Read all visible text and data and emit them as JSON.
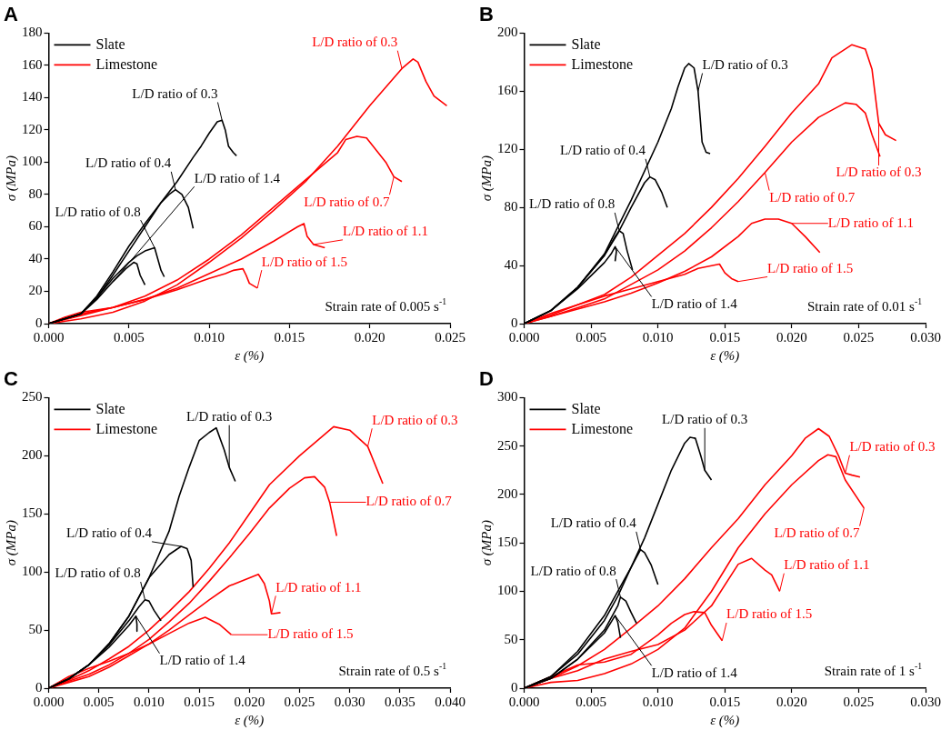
{
  "chart_data": [
    {
      "type": "line",
      "title": "A",
      "xlabel": "ε (%)",
      "ylabel": "σ (MPa)",
      "legend": "top left",
      "xlim": [
        0,
        0.025
      ],
      "xticks": [
        {
          "value": 0,
          "label": "0.000"
        },
        {
          "value": 0.005,
          "label": "0.005"
        },
        {
          "value": 0.01,
          "label": "0.010"
        },
        {
          "value": 0.015,
          "label": "0.015"
        },
        {
          "value": 0.02,
          "label": "0.020"
        },
        {
          "value": 0.025,
          "label": "0.025"
        }
      ],
      "ylim": [
        0,
        180
      ],
      "yticks": [
        0,
        20,
        40,
        60,
        80,
        100,
        120,
        140,
        160,
        180
      ],
      "series": [
        {
          "name": "Slate",
          "color": "#000000",
          "x": [
            0,
            0.001,
            0.002,
            0.003,
            0.004,
            0.005,
            0.006,
            0.007,
            0.008,
            0.009,
            0.0095,
            0.01,
            0.0105,
            0.0108,
            0.011,
            0.0112,
            0.0115,
            0.0117
          ],
          "values": [
            0,
            3,
            6,
            16,
            30,
            45,
            60,
            75,
            88,
            103,
            110,
            118,
            125,
            126,
            120,
            110,
            106,
            104
          ]
        },
        {
          "color": "#000000",
          "x": [
            0,
            0.002,
            0.003,
            0.004,
            0.005,
            0.006,
            0.007,
            0.0075,
            0.0079,
            0.0083,
            0.0087,
            0.009
          ],
          "values": [
            0,
            6,
            17,
            32,
            48,
            62,
            75,
            80,
            83,
            80,
            72,
            59
          ]
        },
        {
          "color": "#000000",
          "x": [
            0,
            0.002,
            0.003,
            0.004,
            0.005,
            0.0055,
            0.006,
            0.0066,
            0.0068,
            0.007,
            0.0072
          ],
          "values": [
            0,
            6,
            16,
            28,
            38,
            42,
            45,
            47,
            40,
            33,
            29
          ]
        },
        {
          "color": "#000000",
          "x": [
            0,
            0.002,
            0.003,
            0.004,
            0.0048,
            0.0053,
            0.0055,
            0.0057,
            0.006
          ],
          "values": [
            0,
            6,
            15,
            26,
            34,
            38,
            37,
            30,
            24
          ]
        },
        {
          "name": "Limestone",
          "color": "#ff0000",
          "x": [
            0,
            0.002,
            0.004,
            0.006,
            0.008,
            0.01,
            0.012,
            0.014,
            0.016,
            0.018,
            0.02,
            0.022,
            0.0227,
            0.023,
            0.0235,
            0.024,
            0.0248
          ],
          "values": [
            0,
            3,
            7,
            14,
            24,
            38,
            53,
            70,
            88,
            110,
            135,
            158,
            164,
            162,
            150,
            141,
            135
          ]
        },
        {
          "color": "#ff0000",
          "x": [
            0,
            0.002,
            0.004,
            0.006,
            0.008,
            0.01,
            0.012,
            0.014,
            0.016,
            0.018,
            0.0185,
            0.0192,
            0.0198,
            0.021,
            0.0215,
            0.022
          ],
          "values": [
            0,
            5,
            10,
            17,
            27,
            40,
            55,
            72,
            89,
            106,
            114,
            116,
            115,
            100,
            91,
            88
          ]
        },
        {
          "color": "#ff0000",
          "x": [
            0,
            0.002,
            0.004,
            0.006,
            0.008,
            0.01,
            0.012,
            0.014,
            0.0155,
            0.0159,
            0.0161,
            0.0165,
            0.0172
          ],
          "values": [
            0,
            6,
            10,
            15,
            22,
            31,
            40,
            51,
            60,
            62,
            54,
            49,
            47
          ]
        },
        {
          "color": "#ff0000",
          "x": [
            0,
            0.001,
            0.002,
            0.004,
            0.006,
            0.008,
            0.01,
            0.011,
            0.0115,
            0.0121,
            0.0123,
            0.0125,
            0.013
          ],
          "values": [
            0,
            4,
            7,
            10,
            15,
            21,
            28,
            31,
            33,
            34,
            30,
            25,
            22
          ]
        }
      ],
      "annotations": [
        {
          "text": "L/D ratio of 0.3",
          "x": 0.0108,
          "y": 126
        },
        {
          "text": "L/D ratio of 0.4",
          "x": 0.0079,
          "y": 83
        },
        {
          "text": "L/D ratio of 0.8",
          "x": 0.0066,
          "y": 47
        },
        {
          "text": "L/D ratio of 1.4",
          "x": 0.004,
          "y": 26
        },
        {
          "text": "L/D ratio of 0.3",
          "x": 0.022,
          "y": 158
        },
        {
          "text": "L/D ratio of 0.7",
          "x": 0.0215,
          "y": 91
        },
        {
          "text": "L/D ratio of 1.1",
          "x": 0.0165,
          "y": 49
        },
        {
          "text": "L/D ratio of 1.5",
          "x": 0.013,
          "y": 22
        },
        "Strain rate of 0.005 s$^{-1}$"
      ]
    },
    {
      "type": "line",
      "title": "B",
      "xlabel": "ε (%)",
      "ylabel": "σ (MPa)",
      "legend": "top left",
      "xlim": [
        0,
        0.03
      ],
      "xticks": [
        {
          "value": 0,
          "label": "0.000"
        },
        {
          "value": 0.005,
          "label": "0.005"
        },
        {
          "value": 0.01,
          "label": "0.010"
        },
        {
          "value": 0.015,
          "label": "0.015"
        },
        {
          "value": 0.02,
          "label": "0.020"
        },
        {
          "value": 0.025,
          "label": "0.025"
        },
        {
          "value": 0.03,
          "label": "0.030"
        }
      ],
      "ylim": [
        0,
        200
      ],
      "yticks": [
        0,
        40,
        80,
        120,
        160,
        200
      ],
      "series": [
        {
          "name": "Slate",
          "color": "#000000",
          "x": [
            0,
            0.002,
            0.004,
            0.006,
            0.008,
            0.01,
            0.011,
            0.0115,
            0.012,
            0.0123,
            0.0127,
            0.013,
            0.0133,
            0.0136,
            0.0139
          ],
          "values": [
            0,
            9,
            25,
            48,
            85,
            125,
            148,
            163,
            176,
            179,
            176,
            160,
            125,
            118,
            117
          ]
        },
        {
          "color": "#000000",
          "x": [
            0,
            0.002,
            0.004,
            0.006,
            0.007,
            0.008,
            0.009,
            0.0094,
            0.0098,
            0.0103,
            0.0107
          ],
          "values": [
            0,
            9,
            25,
            47,
            62,
            80,
            97,
            101,
            99,
            90,
            80
          ]
        },
        {
          "color": "#000000",
          "x": [
            0,
            0.002,
            0.004,
            0.006,
            0.0068,
            0.0071,
            0.0074,
            0.0077,
            0.0081
          ],
          "values": [
            0,
            9,
            25,
            47,
            60,
            64,
            62,
            50,
            37
          ]
        },
        {
          "color": "#000000",
          "x": [
            0,
            0.002,
            0.004,
            0.006,
            0.0065,
            0.0068,
            0.0069,
            0.0068
          ],
          "values": [
            0,
            9,
            24,
            42,
            48,
            53,
            50,
            43
          ]
        },
        {
          "name": "Limestone",
          "color": "#ff0000",
          "x": [
            0,
            0.002,
            0.004,
            0.006,
            0.008,
            0.01,
            0.012,
            0.014,
            0.016,
            0.018,
            0.02,
            0.022,
            0.023,
            0.0245,
            0.0255,
            0.026,
            0.0265,
            0.027,
            0.0278
          ],
          "values": [
            0,
            6,
            13,
            20,
            32,
            47,
            62,
            80,
            100,
            122,
            145,
            165,
            183,
            192,
            189,
            175,
            138,
            130,
            126
          ]
        },
        {
          "color": "#ff0000",
          "x": [
            0,
            0.002,
            0.004,
            0.006,
            0.008,
            0.01,
            0.012,
            0.014,
            0.016,
            0.018,
            0.02,
            0.022,
            0.024,
            0.0248,
            0.0255,
            0.026,
            0.0266
          ],
          "values": [
            0,
            5,
            11,
            17,
            27,
            37,
            50,
            66,
            84,
            104,
            125,
            142,
            152,
            151,
            145,
            130,
            115
          ]
        },
        {
          "color": "#ff0000",
          "x": [
            0,
            0.002,
            0.004,
            0.006,
            0.008,
            0.01,
            0.012,
            0.014,
            0.016,
            0.017,
            0.018,
            0.019,
            0.02,
            0.021,
            0.0221
          ],
          "values": [
            0,
            5,
            10,
            15,
            21,
            28,
            36,
            46,
            60,
            69,
            72,
            72,
            69,
            60,
            49
          ]
        },
        {
          "color": "#ff0000",
          "x": [
            0,
            0.002,
            0.004,
            0.006,
            0.008,
            0.01,
            0.012,
            0.013,
            0.0146,
            0.015,
            0.0155,
            0.016
          ],
          "values": [
            0,
            7,
            13,
            19,
            24,
            29,
            34,
            38,
            41,
            35,
            31,
            29
          ]
        }
      ],
      "annotations": [
        {
          "text": "L/D ratio of 0.3",
          "x": 0.013,
          "y": 160
        },
        {
          "text": "L/D ratio of 0.4",
          "x": 0.0094,
          "y": 101
        },
        {
          "text": "L/D ratio of 0.8",
          "x": 0.0071,
          "y": 64
        },
        {
          "text": "L/D ratio of 1.4",
          "x": 0.0068,
          "y": 53
        },
        {
          "text": "L/D ratio of 0.3",
          "x": 0.0265,
          "y": 138
        },
        {
          "text": "L/D ratio of 0.7",
          "x": 0.018,
          "y": 104
        },
        {
          "text": "L/D ratio of 1.1",
          "x": 0.02,
          "y": 69
        },
        {
          "text": "L/D ratio of 1.5",
          "x": 0.016,
          "y": 29
        },
        "Strain rate of 0.01 s$^{-1}$"
      ]
    },
    {
      "type": "line",
      "title": "C",
      "xlabel": "ε (%)",
      "ylabel": "σ (MPa)",
      "legend": "top left",
      "xlim": [
        0,
        0.04
      ],
      "xticks": [
        {
          "value": 0,
          "label": "0.000"
        },
        {
          "value": 0.005,
          "label": "0.005"
        },
        {
          "value": 0.01,
          "label": "0.010"
        },
        {
          "value": 0.015,
          "label": "0.015"
        },
        {
          "value": 0.02,
          "label": "0.020"
        },
        {
          "value": 0.025,
          "label": "0.025"
        },
        {
          "value": 0.03,
          "label": "0.030"
        },
        {
          "value": 0.035,
          "label": "0.035"
        },
        {
          "value": 0.04,
          "label": "0.040"
        }
      ],
      "ylim": [
        0,
        250
      ],
      "yticks": [
        0,
        50,
        100,
        150,
        200,
        250
      ],
      "series": [
        {
          "name": "Slate",
          "color": "#000000",
          "x": [
            0,
            0.002,
            0.004,
            0.006,
            0.008,
            0.01,
            0.012,
            0.013,
            0.014,
            0.015,
            0.016,
            0.0167,
            0.0175,
            0.018,
            0.0186
          ],
          "values": [
            0,
            8,
            20,
            38,
            62,
            95,
            135,
            165,
            190,
            213,
            220,
            224,
            205,
            190,
            178
          ]
        },
        {
          "color": "#000000",
          "x": [
            0,
            0.002,
            0.004,
            0.006,
            0.008,
            0.01,
            0.011,
            0.012,
            0.0132,
            0.0138,
            0.0142,
            0.0144
          ],
          "values": [
            0,
            8,
            20,
            38,
            62,
            95,
            105,
            115,
            122,
            120,
            110,
            87
          ]
        },
        {
          "color": "#000000",
          "x": [
            0,
            0.002,
            0.004,
            0.006,
            0.008,
            0.009,
            0.0096,
            0.01,
            0.0105,
            0.0112
          ],
          "values": [
            0,
            8,
            20,
            37,
            58,
            70,
            76,
            75,
            67,
            58
          ]
        },
        {
          "color": "#000000",
          "x": [
            0,
            0.002,
            0.004,
            0.006,
            0.008,
            0.0087,
            0.0088,
            0.0088
          ],
          "values": [
            0,
            8,
            20,
            35,
            54,
            62,
            55,
            49
          ]
        },
        {
          "name": "Limestone",
          "color": "#ff0000",
          "x": [
            0,
            0.002,
            0.004,
            0.006,
            0.008,
            0.01,
            0.012,
            0.014,
            0.016,
            0.018,
            0.02,
            0.022,
            0.025,
            0.0284,
            0.03,
            0.0318,
            0.0333
          ],
          "values": [
            0,
            7,
            15,
            25,
            36,
            50,
            66,
            83,
            103,
            125,
            150,
            175,
            200,
            225,
            222,
            208,
            176
          ]
        },
        {
          "color": "#ff0000",
          "x": [
            0,
            0.002,
            0.004,
            0.006,
            0.008,
            0.01,
            0.012,
            0.014,
            0.016,
            0.018,
            0.02,
            0.022,
            0.024,
            0.0255,
            0.0265,
            0.0275,
            0.028,
            0.0287
          ],
          "values": [
            0,
            6,
            12,
            20,
            30,
            42,
            57,
            73,
            92,
            112,
            133,
            155,
            172,
            181,
            182,
            173,
            160,
            131
          ]
        },
        {
          "color": "#ff0000",
          "x": [
            0,
            0.002,
            0.004,
            0.006,
            0.008,
            0.01,
            0.012,
            0.014,
            0.016,
            0.018,
            0.0209,
            0.0215,
            0.022,
            0.0222,
            0.0231
          ],
          "values": [
            0,
            5,
            10,
            18,
            28,
            38,
            50,
            63,
            76,
            88,
            98,
            90,
            75,
            64,
            65
          ]
        },
        {
          "color": "#ff0000",
          "x": [
            0,
            0.002,
            0.004,
            0.006,
            0.008,
            0.01,
            0.012,
            0.014,
            0.0156,
            0.017,
            0.0182
          ],
          "values": [
            0,
            10,
            17,
            23,
            30,
            38,
            47,
            56,
            61,
            55,
            46
          ]
        }
      ],
      "annotations": [
        {
          "text": "L/D ratio of 0.3",
          "x": 0.018,
          "y": 190
        },
        {
          "text": "L/D ratio of 0.4",
          "x": 0.0132,
          "y": 122
        },
        {
          "text": "L/D ratio of 0.8",
          "x": 0.0096,
          "y": 76
        },
        {
          "text": "L/D ratio of 1.4",
          "x": 0.0087,
          "y": 62
        },
        {
          "text": "L/D ratio of 0.3",
          "x": 0.0318,
          "y": 208
        },
        {
          "text": "L/D ratio of 0.7",
          "x": 0.028,
          "y": 160
        },
        {
          "text": "L/D ratio of 1.1",
          "x": 0.0222,
          "y": 64
        },
        {
          "text": "L/D ratio of 1.5",
          "x": 0.0182,
          "y": 46
        },
        "Strain rate of 0.5 s$^{-1}$"
      ]
    },
    {
      "type": "line",
      "title": "D",
      "xlabel": "ε (%)",
      "ylabel": "σ (MPa)",
      "legend": "top left",
      "xlim": [
        0,
        0.03
      ],
      "xticks": [
        {
          "value": 0,
          "label": "0.000"
        },
        {
          "value": 0.005,
          "label": "0.005"
        },
        {
          "value": 0.01,
          "label": "0.010"
        },
        {
          "value": 0.015,
          "label": "0.015"
        },
        {
          "value": 0.02,
          "label": "0.020"
        },
        {
          "value": 0.025,
          "label": "0.025"
        },
        {
          "value": 0.03,
          "label": "0.030"
        }
      ],
      "ylim": [
        0,
        300
      ],
      "yticks": [
        0,
        50,
        100,
        150,
        200,
        250,
        300
      ],
      "series": [
        {
          "name": "Slate",
          "color": "#000000",
          "x": [
            0,
            0.002,
            0.004,
            0.006,
            0.008,
            0.009,
            0.01,
            0.011,
            0.012,
            0.0124,
            0.0128,
            0.0132,
            0.0135,
            0.014
          ],
          "values": [
            0,
            12,
            38,
            75,
            125,
            155,
            190,
            225,
            253,
            259,
            258,
            240,
            225,
            215
          ]
        },
        {
          "color": "#000000",
          "x": [
            0,
            0.002,
            0.004,
            0.006,
            0.007,
            0.008,
            0.0087,
            0.009,
            0.0095,
            0.01
          ],
          "values": [
            0,
            12,
            35,
            70,
            95,
            125,
            143,
            140,
            127,
            107
          ]
        },
        {
          "color": "#000000",
          "x": [
            0,
            0.002,
            0.004,
            0.006,
            0.007,
            0.0072,
            0.0076,
            0.008,
            0.0084
          ],
          "values": [
            0,
            10,
            30,
            60,
            85,
            94,
            90,
            78,
            67
          ]
        },
        {
          "color": "#000000",
          "x": [
            0,
            0.002,
            0.004,
            0.006,
            0.0068,
            0.007,
            0.0072
          ],
          "values": [
            0,
            10,
            30,
            57,
            75,
            68,
            52
          ]
        },
        {
          "name": "Limestone",
          "color": "#ff0000",
          "x": [
            0,
            0.002,
            0.004,
            0.006,
            0.008,
            0.01,
            0.012,
            0.014,
            0.016,
            0.018,
            0.02,
            0.021,
            0.022,
            0.0228,
            0.0235,
            0.024,
            0.0245,
            0.0251
          ],
          "values": [
            0,
            10,
            23,
            40,
            62,
            85,
            113,
            145,
            175,
            210,
            240,
            258,
            268,
            260,
            240,
            222,
            220,
            218
          ]
        },
        {
          "color": "#ff0000",
          "x": [
            0,
            0.002,
            0.004,
            0.006,
            0.008,
            0.01,
            0.012,
            0.014,
            0.016,
            0.018,
            0.02,
            0.022,
            0.0227,
            0.0233,
            0.024,
            0.0254
          ],
          "values": [
            0,
            6,
            8,
            15,
            25,
            40,
            62,
            100,
            145,
            180,
            210,
            235,
            241,
            239,
            215,
            186
          ]
        },
        {
          "color": "#ff0000",
          "x": [
            0,
            0.002,
            0.004,
            0.006,
            0.008,
            0.01,
            0.012,
            0.014,
            0.016,
            0.017,
            0.018,
            0.0185,
            0.0191
          ],
          "values": [
            0,
            10,
            18,
            30,
            38,
            45,
            60,
            85,
            128,
            134,
            122,
            117,
            100
          ]
        },
        {
          "color": "#ff0000",
          "x": [
            0,
            0.002,
            0.004,
            0.006,
            0.008,
            0.01,
            0.011,
            0.012,
            0.0127,
            0.0135,
            0.014,
            0.0148
          ],
          "values": [
            0,
            12,
            24,
            27,
            35,
            55,
            67,
            76,
            79,
            78,
            65,
            49
          ]
        }
      ],
      "annotations": [
        {
          "text": "L/D ratio of 0.3",
          "x": 0.0135,
          "y": 225
        },
        {
          "text": "L/D ratio of 0.4",
          "x": 0.0087,
          "y": 143
        },
        {
          "text": "L/D ratio of 0.8",
          "x": 0.0072,
          "y": 94
        },
        {
          "text": "L/D ratio of 1.4",
          "x": 0.0068,
          "y": 75
        },
        {
          "text": "L/D ratio of 0.3",
          "x": 0.024,
          "y": 222
        },
        {
          "text": "L/D ratio of 0.7",
          "x": 0.0254,
          "y": 186
        },
        {
          "text": "L/D ratio of 1.1",
          "x": 0.0191,
          "y": 100
        },
        {
          "text": "L/D ratio of 1.5",
          "x": 0.0148,
          "y": 49
        },
        "Strain rate of 1 s$^{-1}$"
      ]
    }
  ]
}
